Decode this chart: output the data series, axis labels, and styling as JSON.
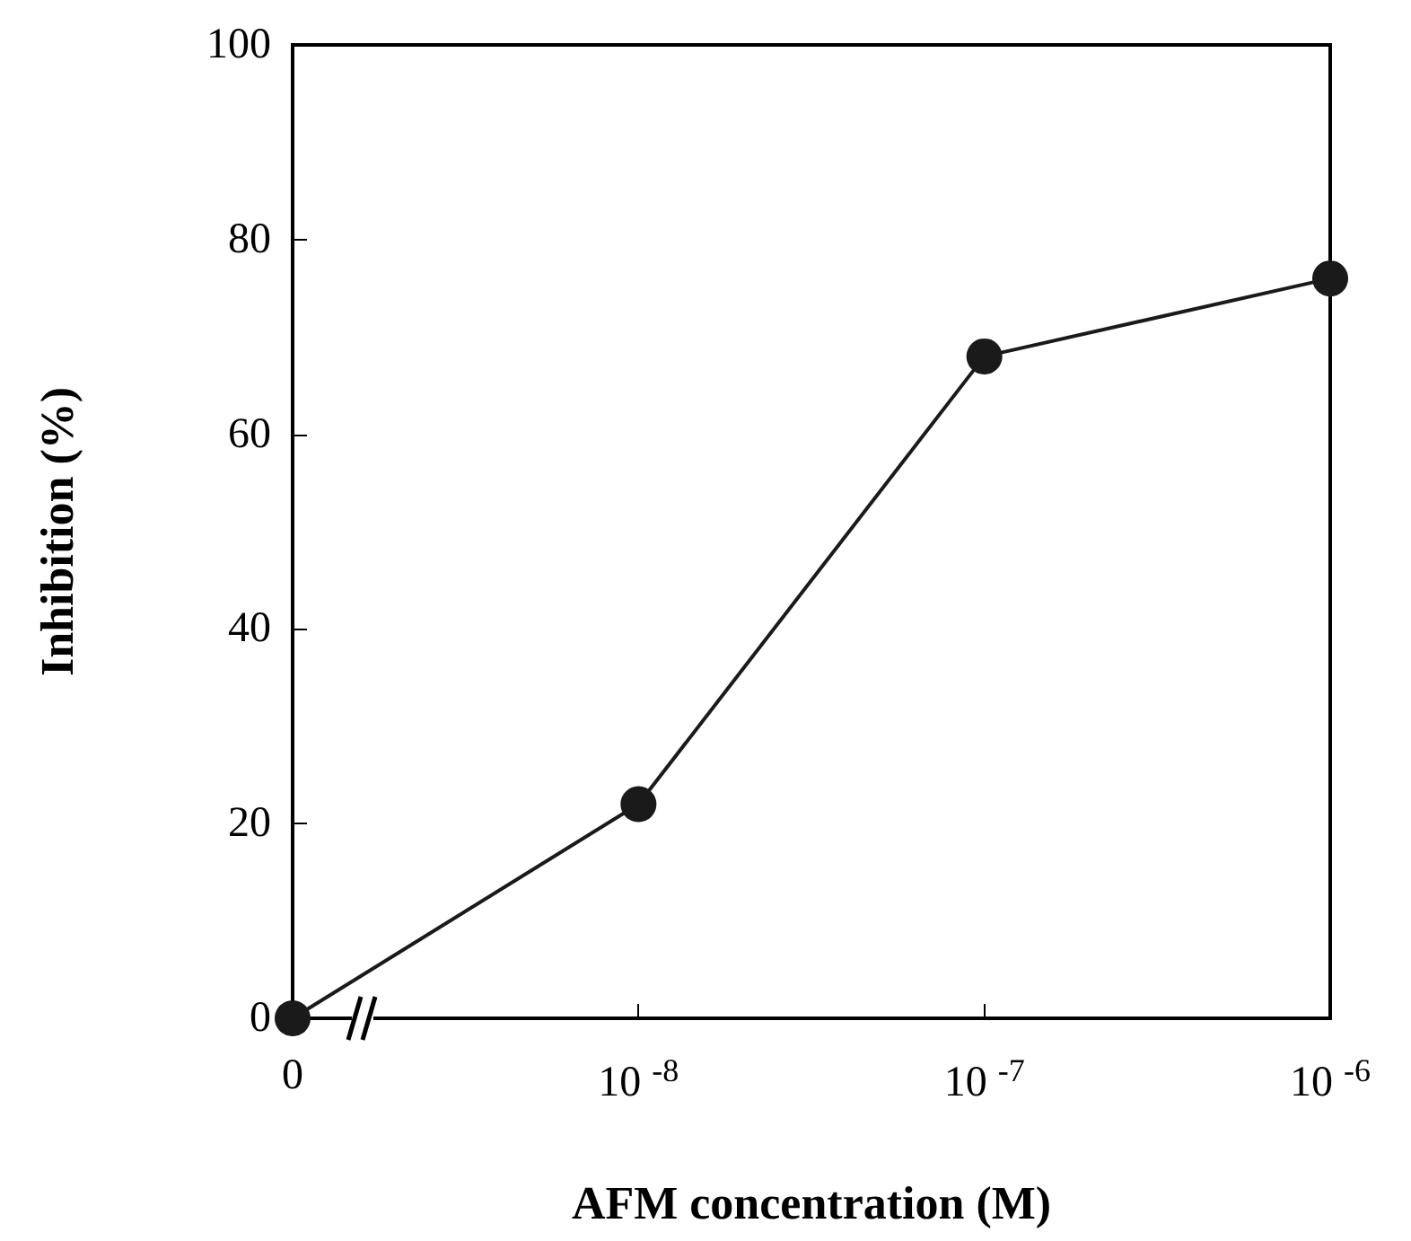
{
  "chart_data": {
    "type": "line",
    "xlabel": "AFM concentration (M)",
    "ylabel": "Inhibition (%)",
    "categories": [
      "0",
      "10$^{-8}$",
      "10$^{-7}$",
      "10$^{-6}$"
    ],
    "series": [
      {
        "color": "#1a1a1a",
        "values": [
          0,
          22,
          68,
          76
        ]
      }
    ],
    "ylim": [
      0,
      100
    ],
    "yticks": [
      0,
      20,
      40,
      60,
      80,
      100
    ],
    "grid": false,
    "marker": "circle",
    "line_style": "solid"
  }
}
